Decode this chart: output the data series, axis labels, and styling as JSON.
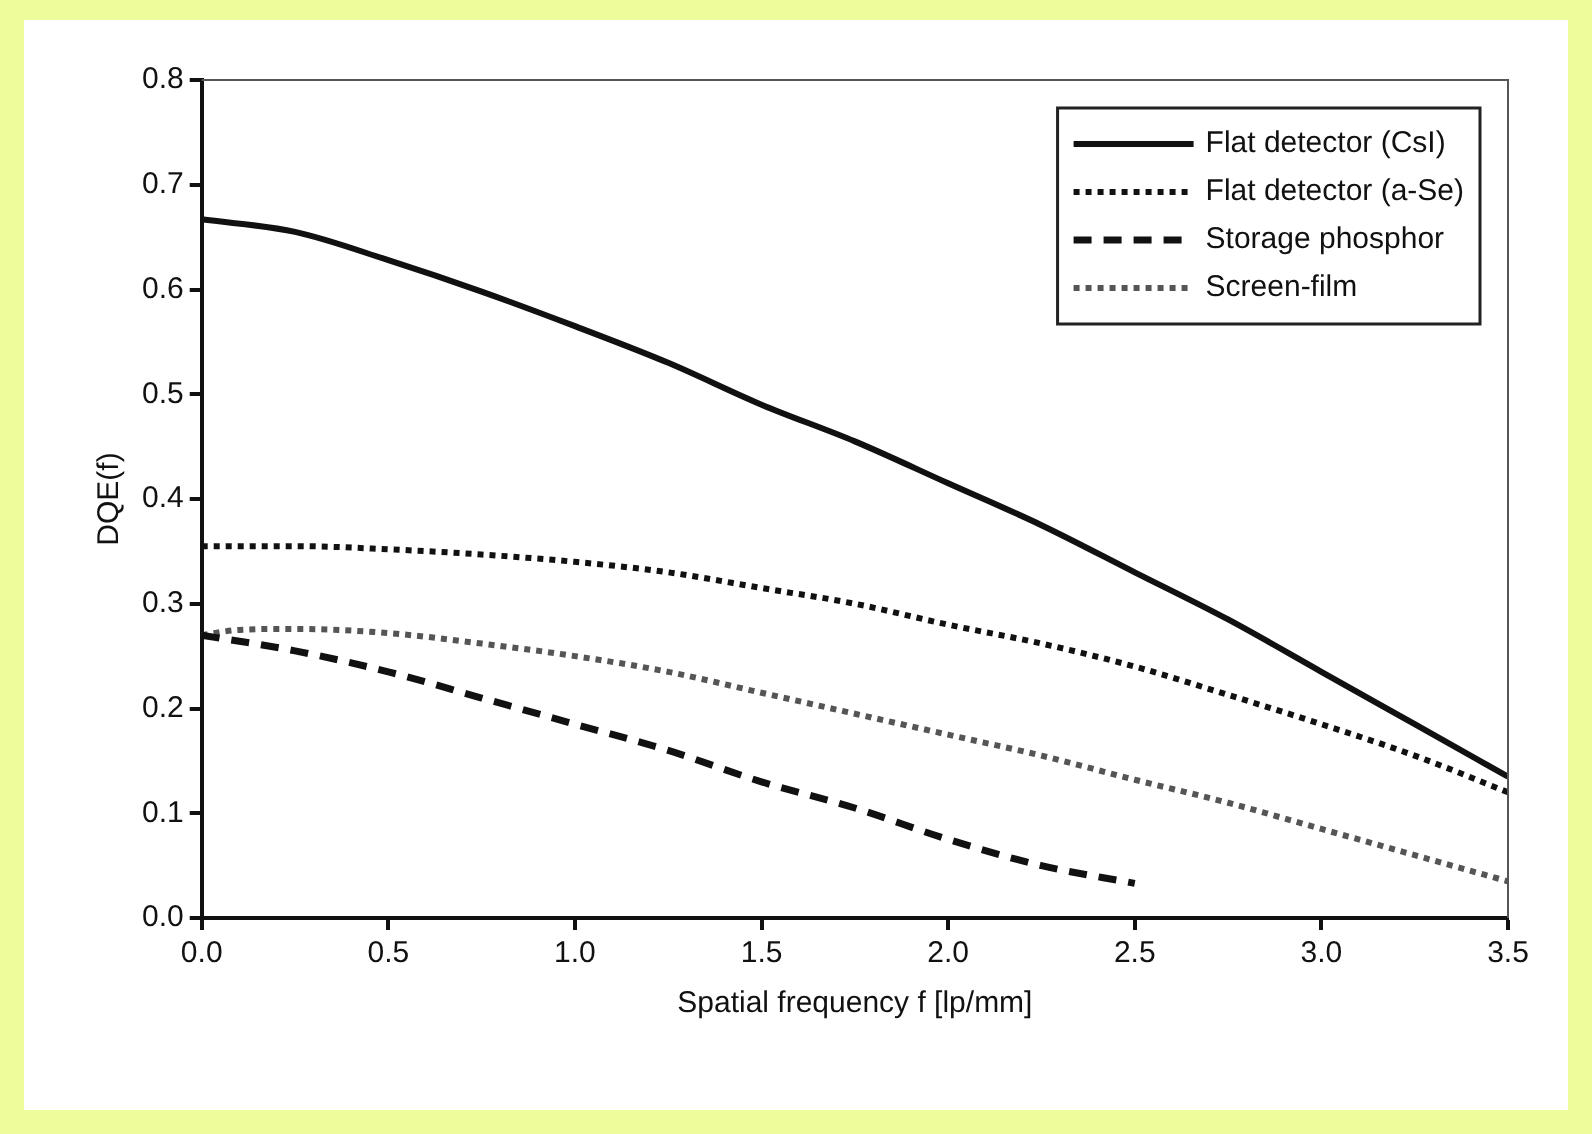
{
  "chart_data": {
    "type": "line",
    "xlabel": "Spatial frequency f [lp/mm]",
    "ylabel": "DQE(f)",
    "xlim": [
      0,
      3.5
    ],
    "xticks": [
      {
        "value": 0,
        "label": "0.0"
      },
      {
        "value": 0.5,
        "label": "0.5"
      },
      {
        "value": 1,
        "label": "1.0"
      },
      {
        "value": 1.5,
        "label": "1.5"
      },
      {
        "value": 2,
        "label": "2.0"
      },
      {
        "value": 2.5,
        "label": "2.5"
      },
      {
        "value": 3,
        "label": "3.0"
      },
      {
        "value": 3.5,
        "label": "3.5"
      }
    ],
    "ylim": [
      0,
      0.8
    ],
    "yticks": [
      {
        "value": 0,
        "label": "0.0"
      },
      0.1,
      0.2,
      0.3,
      0.4,
      0.5,
      0.6,
      0.7,
      0.8
    ],
    "grid": false,
    "legend": "top right",
    "marker": "none",
    "series": [
      {
        "name": "Flat detector (CsI)",
        "color": "#111111",
        "line_style": "solid",
        "x": [
          0,
          0.25,
          0.5,
          0.75,
          1,
          1.25,
          1.5,
          1.75,
          2,
          2.25,
          2.5,
          2.75,
          3,
          3.25,
          3.5
        ],
        "values": [
          0.667,
          0.655,
          0.628,
          0.598,
          0.565,
          0.53,
          0.49,
          0.455,
          0.415,
          0.375,
          0.33,
          0.285,
          0.235,
          0.185,
          0.135
        ]
      },
      {
        "name": "Flat detector (a-Se)",
        "color": "#111111",
        "line_style": "dotted",
        "x": [
          0,
          0.25,
          0.5,
          0.75,
          1,
          1.25,
          1.5,
          1.75,
          2,
          2.25,
          2.5,
          2.75,
          3,
          3.25,
          3.5
        ],
        "values": [
          0.355,
          0.355,
          0.352,
          0.347,
          0.34,
          0.33,
          0.315,
          0.3,
          0.28,
          0.262,
          0.24,
          0.213,
          0.185,
          0.155,
          0.12
        ]
      },
      {
        "name": "Storage phosphor",
        "color": "#111111",
        "line_style": "dashed",
        "x": [
          0,
          0.25,
          0.5,
          0.75,
          1,
          1.25,
          1.5,
          1.75,
          2,
          2.25,
          2.5
        ],
        "values": [
          0.27,
          0.255,
          0.235,
          0.21,
          0.185,
          0.16,
          0.13,
          0.105,
          0.075,
          0.05,
          0.033
        ]
      },
      {
        "name": "Screen-film",
        "color": "#555555",
        "line_style": "dotted",
        "x": [
          0,
          0.1,
          0.25,
          0.5,
          0.75,
          1,
          1.25,
          1.5,
          1.75,
          2,
          2.25,
          2.5,
          2.75,
          3,
          3.25,
          3.5
        ],
        "values": [
          0.27,
          0.275,
          0.276,
          0.272,
          0.262,
          0.25,
          0.235,
          0.215,
          0.195,
          0.175,
          0.155,
          0.132,
          0.11,
          0.085,
          0.06,
          0.035
        ]
      }
    ]
  }
}
